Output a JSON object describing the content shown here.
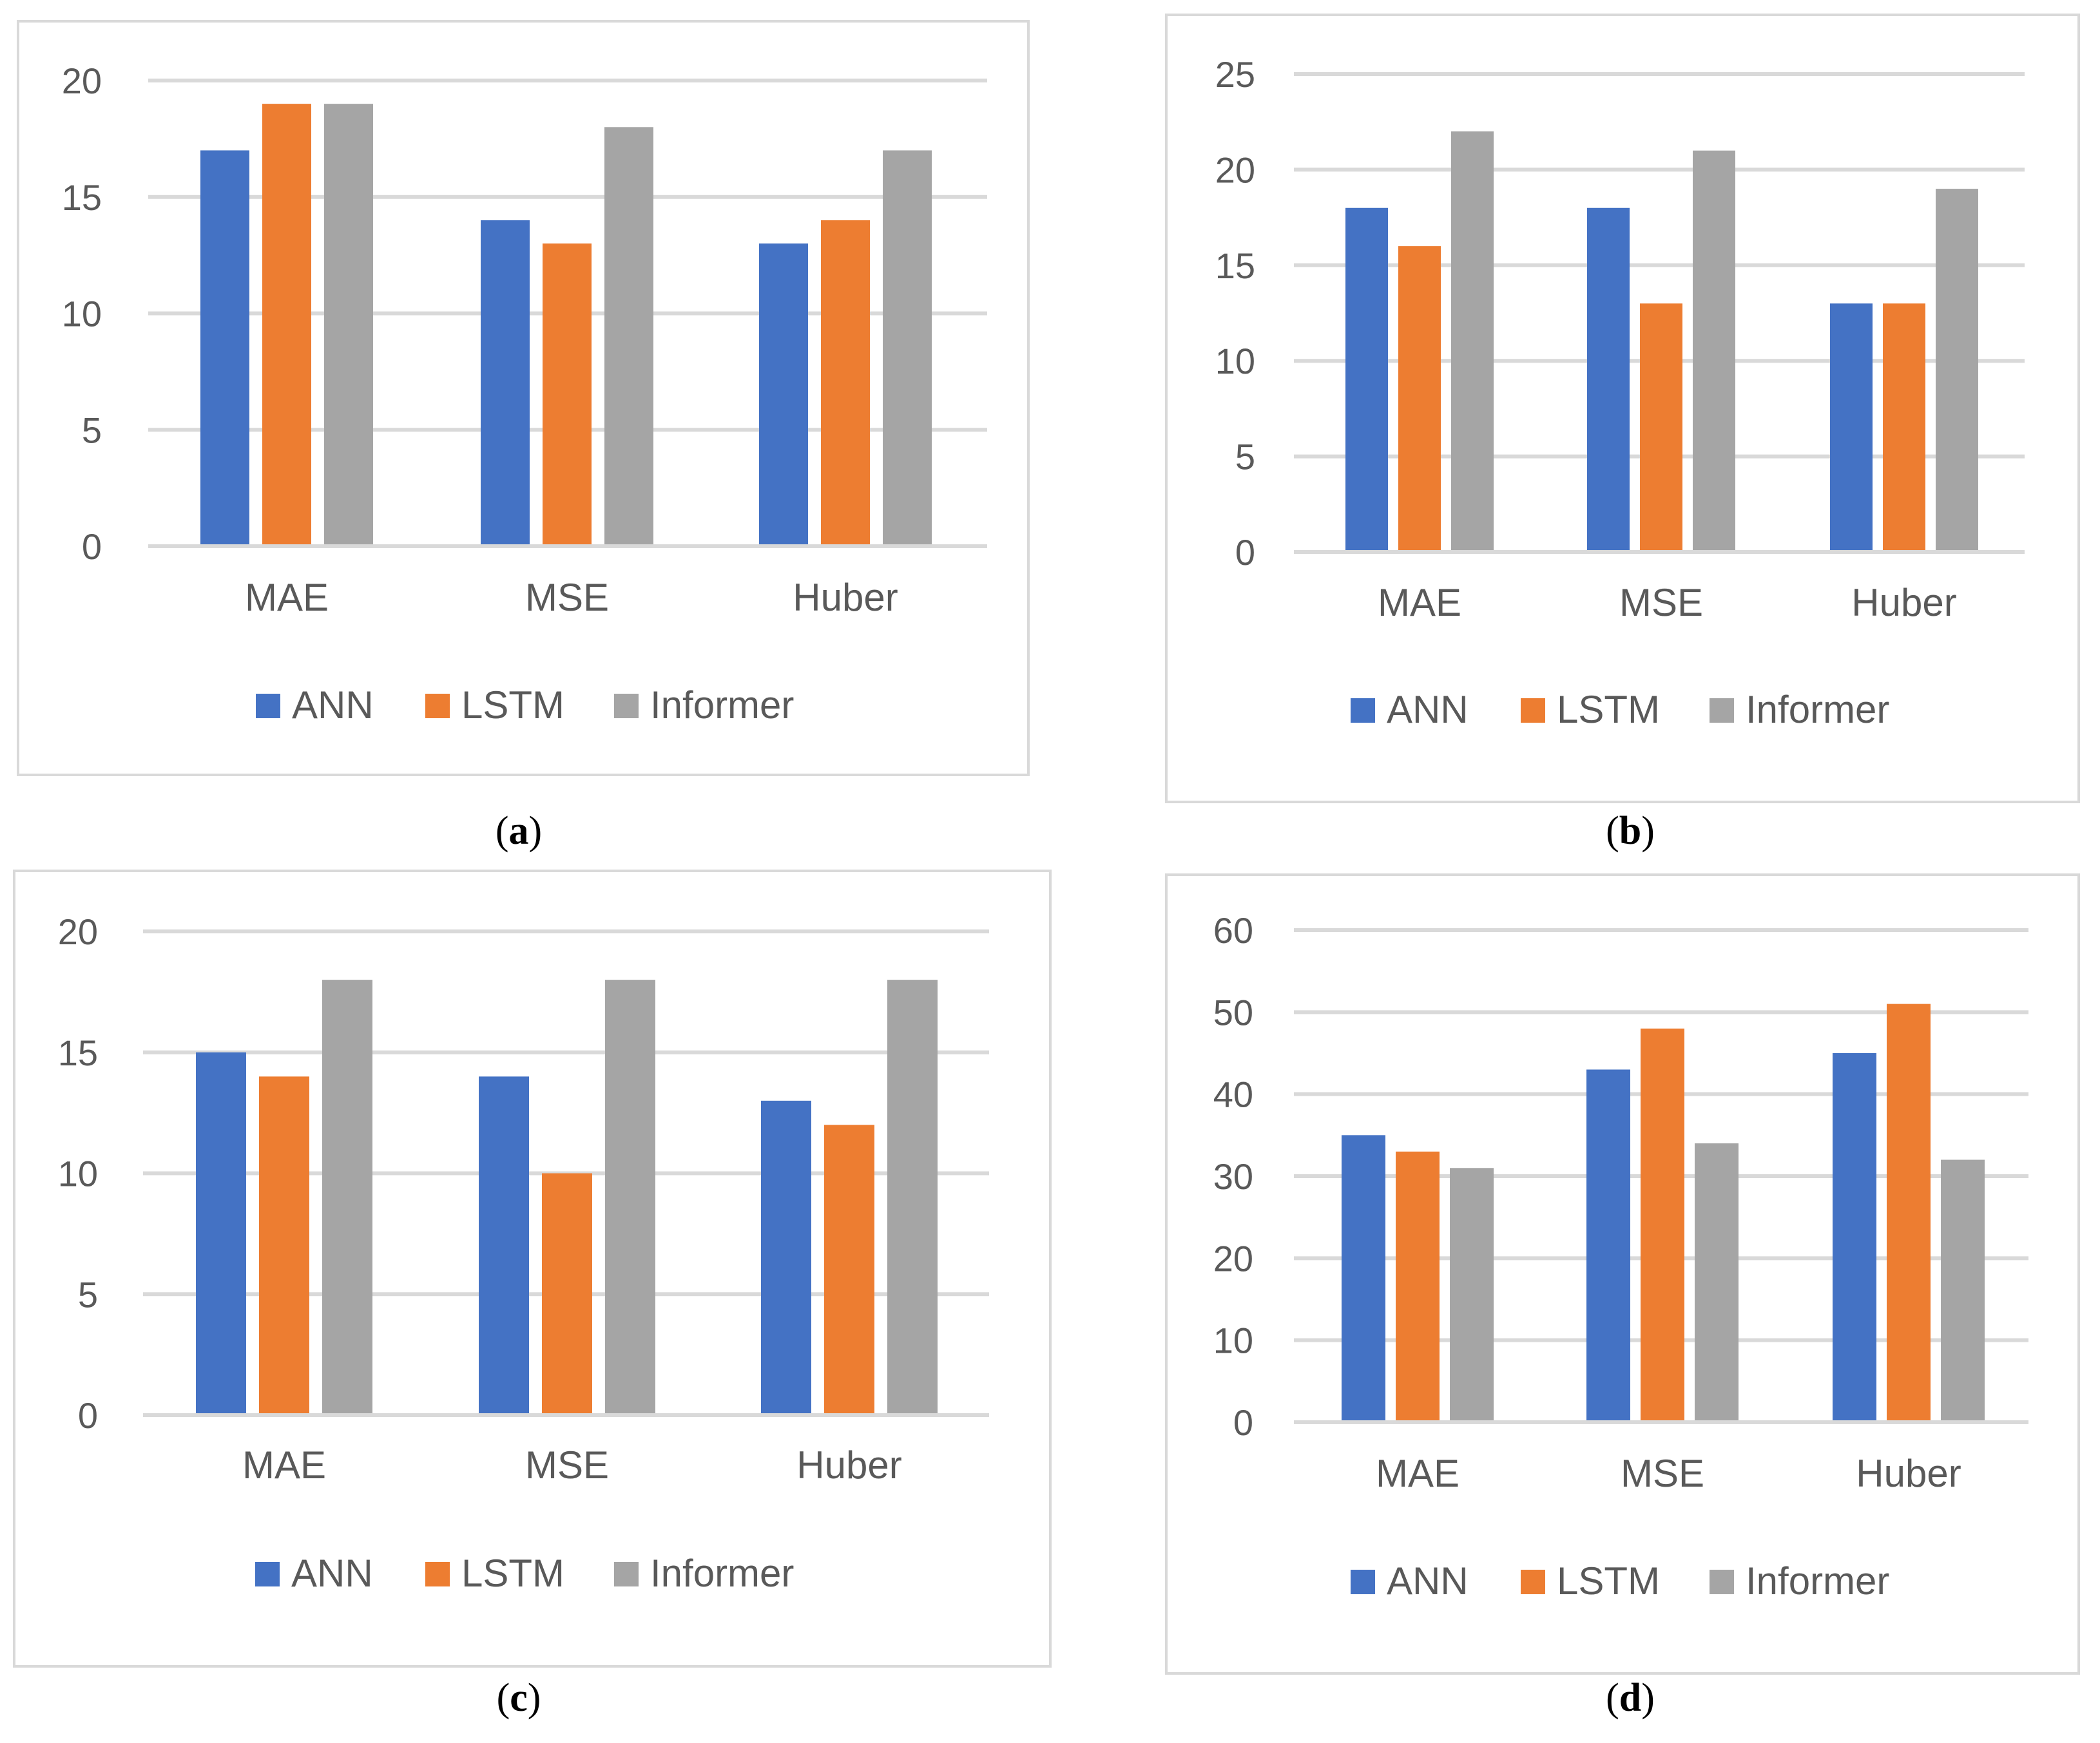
{
  "figure": {
    "colors": {
      "ANN": "#4472C4",
      "LSTM": "#ED7D31",
      "Informer": "#A5A5A5",
      "grid": "#D9D9D9",
      "text": "#595959"
    }
  },
  "chart_data": [
    {
      "type": "bar",
      "panel": "a",
      "caption": {
        "open": "(",
        "letter": "a",
        "close": ")"
      },
      "categories": [
        "MAE",
        "MSE",
        "Huber"
      ],
      "series": [
        {
          "name": "ANN",
          "values": [
            17,
            14,
            13
          ]
        },
        {
          "name": "LSTM",
          "values": [
            19,
            13,
            14
          ]
        },
        {
          "name": "Informer",
          "values": [
            19,
            18,
            17
          ]
        }
      ],
      "ylim": [
        0,
        20
      ],
      "yticks": [
        0,
        5,
        10,
        15,
        20
      ],
      "grid": true,
      "legend": "bottom"
    },
    {
      "type": "bar",
      "panel": "b",
      "caption": {
        "open": "(",
        "letter": "b",
        "close": ")"
      },
      "categories": [
        "MAE",
        "MSE",
        "Huber"
      ],
      "series": [
        {
          "name": "ANN",
          "values": [
            18,
            18,
            13
          ]
        },
        {
          "name": "LSTM",
          "values": [
            16,
            13,
            13
          ]
        },
        {
          "name": "Informer",
          "values": [
            22,
            21,
            19
          ]
        }
      ],
      "ylim": [
        0,
        25
      ],
      "yticks": [
        0,
        5,
        10,
        15,
        20,
        25
      ],
      "grid": true,
      "legend": "bottom"
    },
    {
      "type": "bar",
      "panel": "c",
      "caption": {
        "open": "(",
        "letter": "c",
        "close": ")"
      },
      "categories": [
        "MAE",
        "MSE",
        "Huber"
      ],
      "series": [
        {
          "name": "ANN",
          "values": [
            15,
            14,
            13
          ]
        },
        {
          "name": "LSTM",
          "values": [
            14,
            10,
            12
          ]
        },
        {
          "name": "Informer",
          "values": [
            18,
            18,
            18
          ]
        }
      ],
      "ylim": [
        0,
        20
      ],
      "yticks": [
        0,
        5,
        10,
        15,
        20
      ],
      "grid": true,
      "legend": "bottom"
    },
    {
      "type": "bar",
      "panel": "d",
      "caption": {
        "open": "(",
        "letter": "d",
        "close": ")"
      },
      "categories": [
        "MAE",
        "MSE",
        "Huber"
      ],
      "series": [
        {
          "name": "ANN",
          "values": [
            35,
            43,
            45
          ]
        },
        {
          "name": "LSTM",
          "values": [
            33,
            48,
            51
          ]
        },
        {
          "name": "Informer",
          "values": [
            31,
            34,
            32
          ]
        }
      ],
      "ylim": [
        0,
        60
      ],
      "yticks": [
        0,
        10,
        20,
        30,
        40,
        50,
        60
      ],
      "grid": true,
      "legend": "bottom"
    }
  ]
}
